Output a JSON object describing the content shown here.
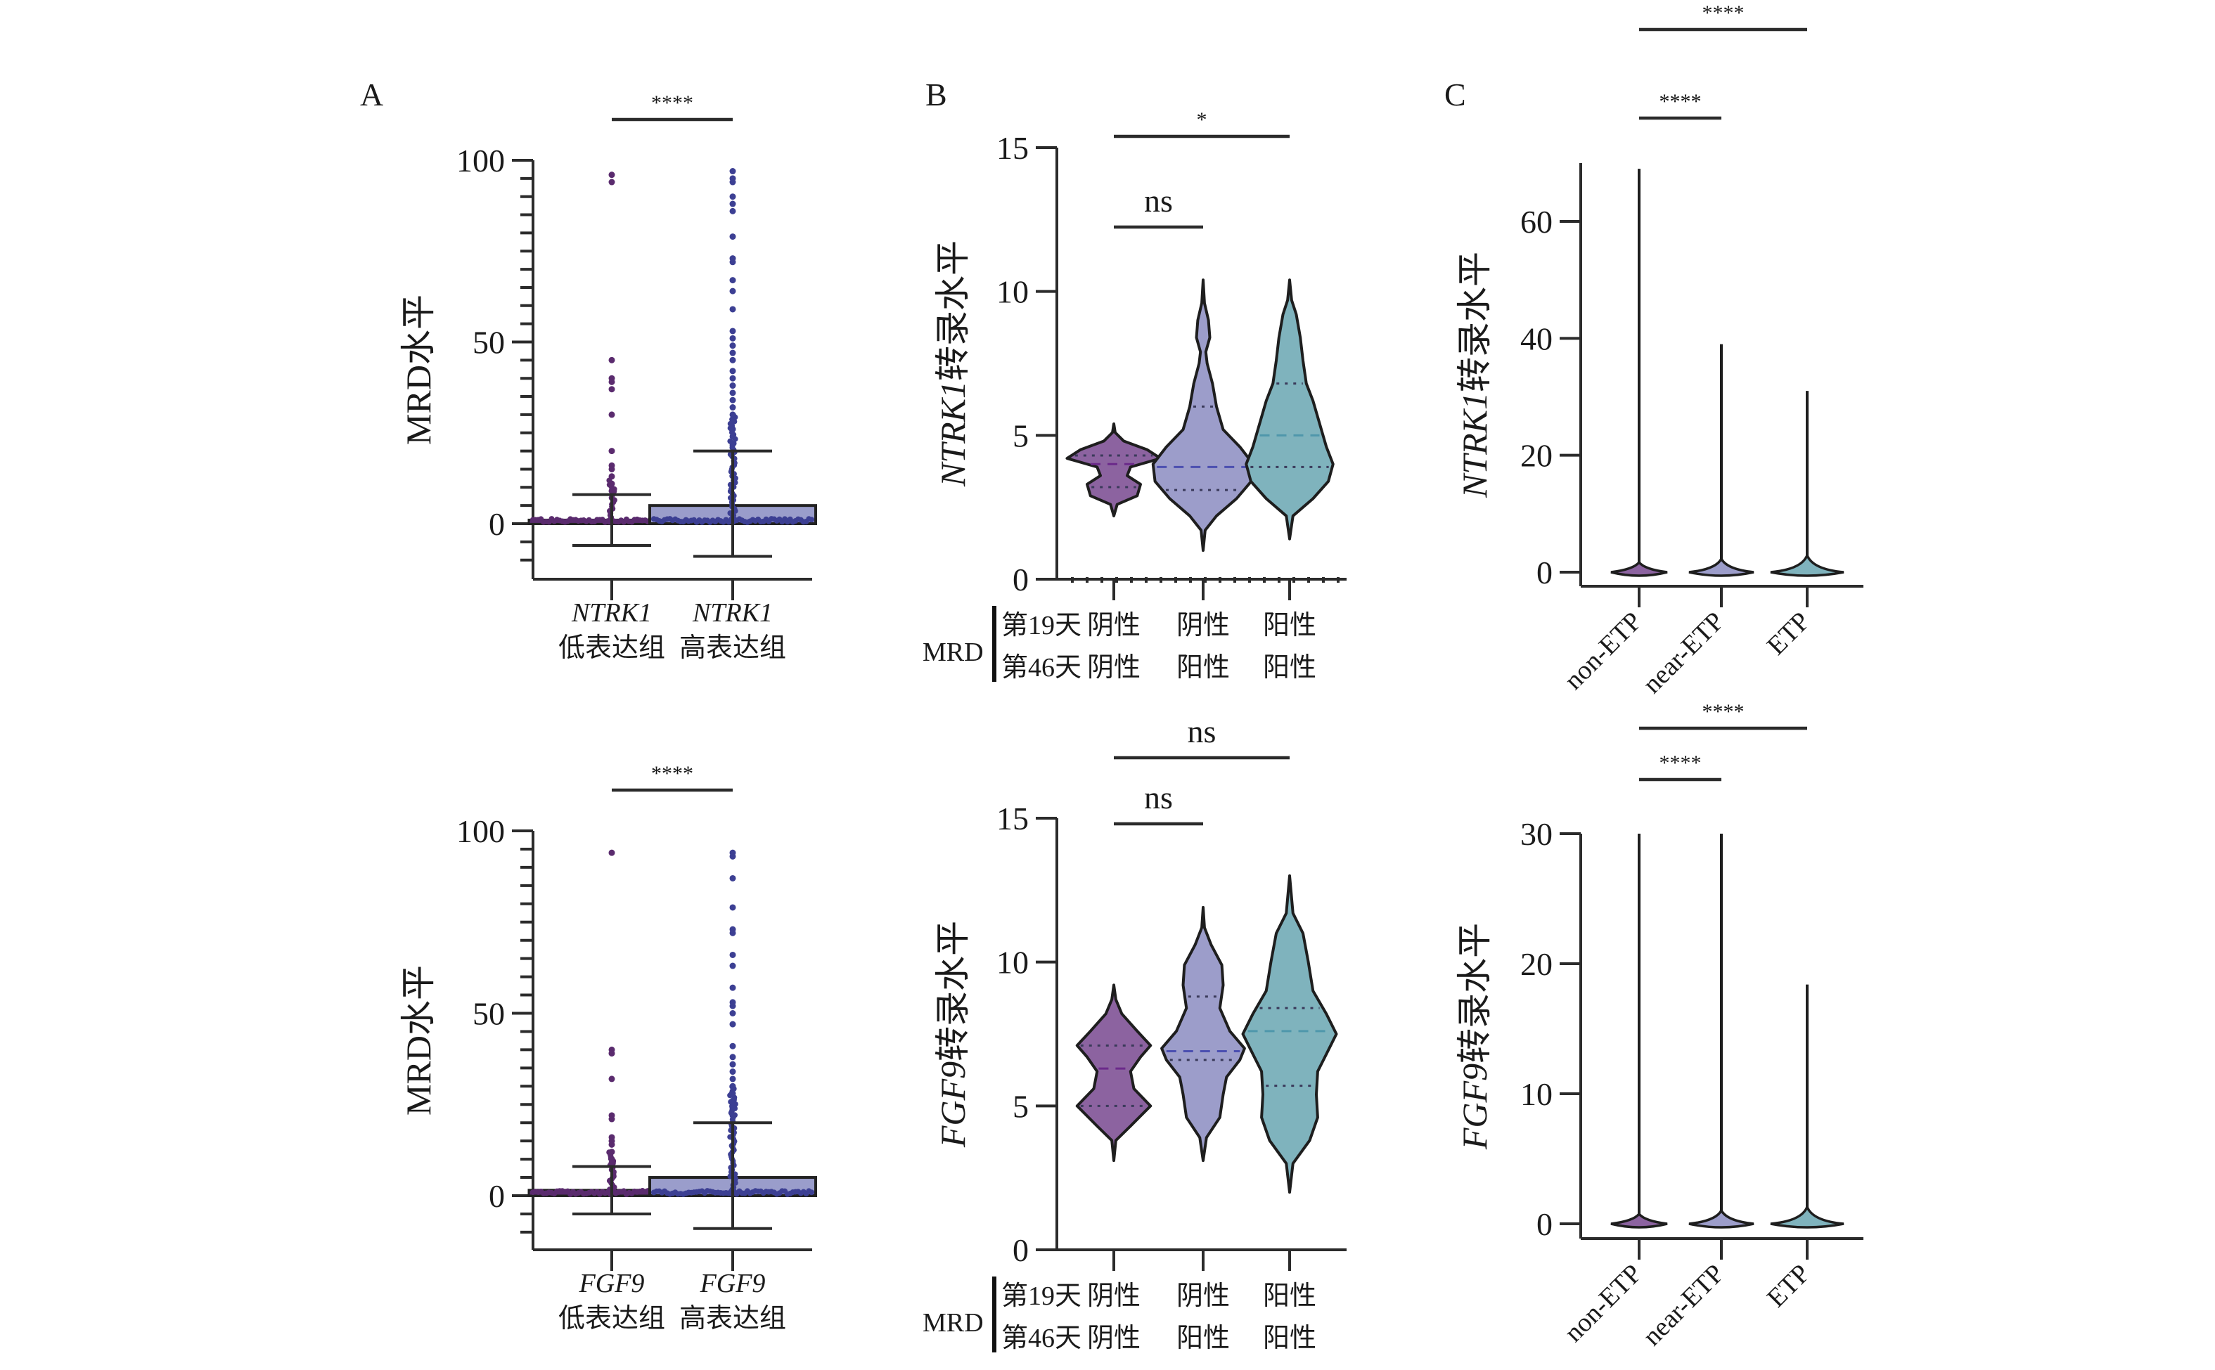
{
  "figure": {
    "panel_labels": [
      "A",
      "B",
      "C"
    ]
  },
  "colors": {
    "low_group": "#5a2b6e",
    "high_group": "#3c3f93",
    "high_bar_fill": "#9a9dcb",
    "violin_1": "#8c63a0",
    "violin_2": "#9c9dca",
    "violin_3": "#7fb3bd",
    "axis": "#2b2b2b"
  },
  "chart_data": [
    {
      "id": "A-top",
      "panel": "A",
      "type": "bar",
      "subtype": "bar-with-scatter-and-error",
      "ylabel": "MRD水平",
      "ylim": [
        -15,
        100
      ],
      "yticks": [
        0,
        50,
        100
      ],
      "minor_tick_step": 5,
      "categories": [
        {
          "gene": "NTRK1",
          "group": "低表达组"
        },
        {
          "gene": "NTRK1",
          "group": "高表达组"
        }
      ],
      "series": [
        {
          "name": "NTRK1 低表达组",
          "mean": 0.5,
          "error_low": -6,
          "error_high": 8,
          "outliers": [
            96,
            94,
            45,
            40,
            39,
            37,
            30,
            20,
            16,
            15,
            13,
            11,
            9
          ]
        },
        {
          "name": "NTRK1 高表达组",
          "mean": 5,
          "error_low": -9,
          "error_high": 20,
          "outliers": [
            97,
            95,
            94,
            90,
            88,
            86,
            79,
            73,
            72,
            67,
            64,
            59,
            53,
            51,
            49,
            47,
            45,
            42,
            40,
            38,
            36,
            34,
            32,
            30,
            28,
            26,
            24,
            22
          ]
        }
      ],
      "significance": [
        {
          "from": 0,
          "to": 1,
          "label": "****"
        }
      ]
    },
    {
      "id": "B-top",
      "panel": "B",
      "type": "violin",
      "ylabel_italic": "NTRK1",
      "ylabel_rest": "转录水平",
      "ylim": [
        0,
        15
      ],
      "yticks": [
        0,
        5,
        10,
        15
      ],
      "categories": [
        "阴性/阴性",
        "阴性/阳性",
        "阳性/阳性"
      ],
      "series": [
        {
          "name": "第19天 阴性 / 第46天 阴性",
          "min": 2.2,
          "max": 5.4,
          "q1": 3.2,
          "median": 4.0,
          "q3": 4.3,
          "density": [
            [
              2.2,
              0
            ],
            [
              2.6,
              0.05
            ],
            [
              2.9,
              0.35
            ],
            [
              3.3,
              0.4
            ],
            [
              3.6,
              0.2
            ],
            [
              3.9,
              0.25
            ],
            [
              4.2,
              0.7
            ],
            [
              4.5,
              0.5
            ],
            [
              4.8,
              0.15
            ],
            [
              5.1,
              0.02
            ],
            [
              5.4,
              0
            ]
          ]
        },
        {
          "name": "第19天 阴性 / 第46天 阳性",
          "min": 1.0,
          "max": 10.4,
          "q1": 3.1,
          "median": 3.9,
          "q3": 6.0,
          "density": [
            [
              1.0,
              0
            ],
            [
              1.7,
              0.03
            ],
            [
              2.2,
              0.2
            ],
            [
              2.8,
              0.5
            ],
            [
              3.4,
              0.72
            ],
            [
              4.0,
              0.75
            ],
            [
              4.6,
              0.55
            ],
            [
              5.2,
              0.3
            ],
            [
              6.0,
              0.2
            ],
            [
              6.8,
              0.14
            ],
            [
              7.5,
              0.06
            ],
            [
              7.9,
              0.04
            ],
            [
              8.4,
              0.1
            ],
            [
              9.0,
              0.08
            ],
            [
              9.6,
              0.02
            ],
            [
              10.4,
              0
            ]
          ]
        },
        {
          "name": "第19天 阳性 / 第46天 阳性",
          "min": 1.4,
          "max": 10.4,
          "q1": 3.9,
          "median": 5.0,
          "q3": 6.8,
          "density": [
            [
              1.4,
              0
            ],
            [
              2.2,
              0.05
            ],
            [
              2.8,
              0.35
            ],
            [
              3.4,
              0.58
            ],
            [
              4.0,
              0.65
            ],
            [
              4.6,
              0.55
            ],
            [
              5.4,
              0.45
            ],
            [
              6.2,
              0.35
            ],
            [
              6.8,
              0.25
            ],
            [
              7.6,
              0.2
            ],
            [
              8.4,
              0.16
            ],
            [
              9.2,
              0.1
            ],
            [
              9.7,
              0.03
            ],
            [
              10.4,
              0
            ]
          ]
        }
      ],
      "mrd_rows": [
        {
          "label": "第19天",
          "values": [
            "阴性",
            "阴性",
            "阳性"
          ]
        },
        {
          "label": "第46天",
          "values": [
            "阴性",
            "阳性",
            "阳性"
          ]
        }
      ],
      "mrd_title": "MRD",
      "significance": [
        {
          "from": 0,
          "to": 1,
          "label": "ns"
        },
        {
          "from": 0,
          "to": 2,
          "label": "*"
        }
      ]
    },
    {
      "id": "C-top",
      "panel": "C",
      "type": "violin",
      "ylabel_italic": "NTRK1",
      "ylabel_rest": "转录水平",
      "ylim": [
        -3,
        70
      ],
      "yticks": [
        0,
        20,
        40,
        60
      ],
      "categories": [
        "non-ETP",
        "near-ETP",
        "ETP"
      ],
      "series": [
        {
          "name": "non-ETP",
          "min": 0,
          "max": 69,
          "median": 0.1,
          "spread": 0.45
        },
        {
          "name": "near-ETP",
          "min": 0,
          "max": 39,
          "median": 0.4,
          "spread": 0.5
        },
        {
          "name": "ETP",
          "min": 0,
          "max": 31,
          "median": 0.6,
          "spread": 0.55
        }
      ],
      "significance": [
        {
          "from": 0,
          "to": 1,
          "label": "****"
        },
        {
          "from": 0,
          "to": 2,
          "label": "****"
        }
      ]
    },
    {
      "id": "A-bottom",
      "panel": "A",
      "type": "bar",
      "subtype": "bar-with-scatter-and-error",
      "ylabel": "MRD水平",
      "ylim": [
        -15,
        100
      ],
      "yticks": [
        0,
        50,
        100
      ],
      "minor_tick_step": 5,
      "categories": [
        {
          "gene": "FGF9",
          "group": "低表达组"
        },
        {
          "gene": "FGF9",
          "group": "高表达组"
        }
      ],
      "series": [
        {
          "name": "FGF9 低表达组",
          "mean": 1,
          "error_low": -5,
          "error_high": 8,
          "outliers": [
            94,
            40,
            39,
            32,
            22,
            21,
            16,
            15,
            14,
            12,
            10,
            9
          ]
        },
        {
          "name": "FGF9 高表达组",
          "mean": 5,
          "error_low": -9,
          "error_high": 20,
          "outliers": [
            94,
            93,
            87,
            79,
            73,
            72,
            66,
            63,
            57,
            53,
            52,
            50,
            47,
            41,
            38,
            36,
            34,
            32,
            30,
            28,
            26,
            24,
            22
          ]
        }
      ],
      "significance": [
        {
          "from": 0,
          "to": 1,
          "label": "****"
        }
      ]
    },
    {
      "id": "B-bottom",
      "panel": "B",
      "type": "violin",
      "ylabel_italic": "FGF9",
      "ylabel_rest": "转录水平",
      "ylim": [
        0,
        15
      ],
      "yticks": [
        0,
        5,
        10,
        15
      ],
      "categories": [
        "阴性/阴性",
        "阴性/阳性",
        "阳性/阳性"
      ],
      "series": [
        {
          "name": "第19天 阴性 / 第46天 阴性",
          "min": 3.1,
          "max": 9.2,
          "q1": 5.0,
          "median": 6.3,
          "q3": 7.1,
          "density": [
            [
              3.1,
              0
            ],
            [
              3.8,
              0.03
            ],
            [
              4.3,
              0.25
            ],
            [
              5.0,
              0.55
            ],
            [
              5.6,
              0.3
            ],
            [
              6.2,
              0.25
            ],
            [
              6.7,
              0.4
            ],
            [
              7.1,
              0.55
            ],
            [
              7.6,
              0.35
            ],
            [
              8.2,
              0.12
            ],
            [
              8.7,
              0.03
            ],
            [
              9.2,
              0
            ]
          ]
        },
        {
          "name": "第19天 阴性 / 第46天 阳性",
          "min": 3.1,
          "max": 11.9,
          "q1": 6.6,
          "median": 6.9,
          "q3": 8.8,
          "density": [
            [
              3.1,
              0
            ],
            [
              3.9,
              0.05
            ],
            [
              4.6,
              0.25
            ],
            [
              5.4,
              0.3
            ],
            [
              6.0,
              0.35
            ],
            [
              6.6,
              0.55
            ],
            [
              7.0,
              0.62
            ],
            [
              7.6,
              0.4
            ],
            [
              8.4,
              0.25
            ],
            [
              9.2,
              0.3
            ],
            [
              9.9,
              0.28
            ],
            [
              10.6,
              0.12
            ],
            [
              11.2,
              0.02
            ],
            [
              11.9,
              0
            ]
          ]
        },
        {
          "name": "第19天 阳性 / 第46天 阳性",
          "min": 2.0,
          "max": 13.0,
          "q1": 5.7,
          "median": 7.6,
          "q3": 8.4,
          "density": [
            [
              2.0,
              0
            ],
            [
              3.0,
              0.05
            ],
            [
              3.8,
              0.3
            ],
            [
              4.6,
              0.42
            ],
            [
              5.4,
              0.4
            ],
            [
              6.2,
              0.42
            ],
            [
              6.8,
              0.55
            ],
            [
              7.5,
              0.7
            ],
            [
              8.2,
              0.55
            ],
            [
              9.0,
              0.35
            ],
            [
              10.0,
              0.28
            ],
            [
              11.0,
              0.2
            ],
            [
              11.7,
              0.05
            ],
            [
              13.0,
              0
            ]
          ]
        }
      ],
      "mrd_rows": [
        {
          "label": "第19天",
          "values": [
            "阴性",
            "阴性",
            "阳性"
          ]
        },
        {
          "label": "第46天",
          "values": [
            "阴性",
            "阳性",
            "阳性"
          ]
        }
      ],
      "mrd_title": "MRD",
      "significance": [
        {
          "from": 0,
          "to": 1,
          "label": "ns"
        },
        {
          "from": 0,
          "to": 2,
          "label": "ns"
        }
      ]
    },
    {
      "id": "C-bottom",
      "panel": "C",
      "type": "violin",
      "ylabel_italic": "FGF9",
      "ylabel_rest": "转录水平",
      "ylim": [
        -2,
        30
      ],
      "yticks": [
        0,
        10,
        20,
        30
      ],
      "categories": [
        "non-ETP",
        "near-ETP",
        "ETP"
      ],
      "series": [
        {
          "name": "non-ETP",
          "min": 0,
          "max": 30,
          "median": 0.05,
          "spread": 0.45
        },
        {
          "name": "near-ETP",
          "min": 0,
          "max": 30,
          "median": 0.1,
          "spread": 0.5
        },
        {
          "name": "ETP",
          "min": 0,
          "max": 18.4,
          "median": 0.1,
          "spread": 0.55
        }
      ],
      "significance": [
        {
          "from": 0,
          "to": 1,
          "label": "****"
        },
        {
          "from": 0,
          "to": 2,
          "label": "****"
        }
      ]
    }
  ]
}
